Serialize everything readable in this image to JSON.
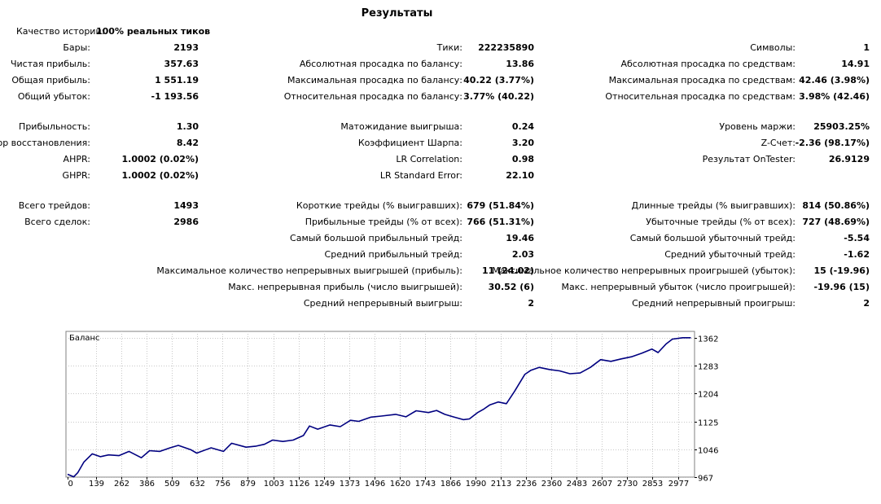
{
  "report": {
    "title": "Результаты",
    "quality": {
      "label": "Качество истории:",
      "value": "100% реальных тиков"
    },
    "col1": [
      {
        "label": "Бары:",
        "value": "2193"
      },
      {
        "label": "Чистая прибыль:",
        "value": "357.63"
      },
      {
        "label": "Общая прибыль:",
        "value": "1 551.19"
      },
      {
        "label": "Общий убыток:",
        "value": "-1 193.56"
      },
      {
        "label": "Прибыльность:",
        "value": "1.30"
      },
      {
        "label": "Фактор восстановления:",
        "value": "8.42"
      },
      {
        "label": "AHPR:",
        "value": "1.0002 (0.02%)"
      },
      {
        "label": "GHPR:",
        "value": "1.0002 (0.02%)"
      },
      {
        "label": "Всего трейдов:",
        "value": "1493"
      },
      {
        "label": "Всего сделок:",
        "value": "2986"
      }
    ],
    "col2": [
      {
        "label": "Тики:",
        "value": "222235890"
      },
      {
        "label": "Абсолютная просадка по балансу:",
        "value": "13.86"
      },
      {
        "label": "Максимальная просадка по балансу:",
        "value": "40.22 (3.77%)"
      },
      {
        "label": "Относительная просадка по балансу:",
        "value": "3.77% (40.22)"
      },
      {
        "label": "Матожидание выигрыша:",
        "value": "0.24"
      },
      {
        "label": "Коэффициент Шарпа:",
        "value": "3.20"
      },
      {
        "label": "LR Correlation:",
        "value": "0.98"
      },
      {
        "label": "LR Standard Error:",
        "value": "22.10"
      },
      {
        "label": "Короткие трейды (% выигравших):",
        "value": "679 (51.84%)"
      },
      {
        "label": "Прибыльные трейды (% от всех):",
        "value": "766 (51.31%)"
      },
      {
        "label": "Самый большой прибыльный трейд:",
        "value": "19.46"
      },
      {
        "label": "Средний прибыльный трейд:",
        "value": "2.03"
      },
      {
        "label": "Максимальное количество непрерывных выигрышей (прибыль):",
        "value": "11 (24.02)"
      },
      {
        "label": "Макс. непрерывная прибыль (число выигрышей):",
        "value": "30.52 (6)"
      },
      {
        "label": "Средний непрерывный выигрыш:",
        "value": "2"
      }
    ],
    "col3": [
      {
        "label": "Символы:",
        "value": "1"
      },
      {
        "label": "Абсолютная просадка по средствам:",
        "value": "14.91"
      },
      {
        "label": "Максимальная просадка по средствам:",
        "value": "42.46 (3.98%)"
      },
      {
        "label": "Относительная просадка по средствам:",
        "value": "3.98% (42.46)"
      },
      {
        "label": "Уровень маржи:",
        "value": "25903.25%"
      },
      {
        "label": "Z-Счет:",
        "value": "-2.36 (98.17%)"
      },
      {
        "label": "Результат OnTester:",
        "value": "26.9129"
      },
      {
        "label": "Длинные трейды (% выигравших):",
        "value": "814 (50.86%)"
      },
      {
        "label": "Убыточные трейды (% от всех):",
        "value": "727 (48.69%)"
      },
      {
        "label": "Самый большой убыточный трейд:",
        "value": "-5.54"
      },
      {
        "label": "Средний убыточный трейд:",
        "value": "-1.62"
      },
      {
        "label": "Максимальное количество непрерывных проигрышей (убыток):",
        "value": "15 (-19.96)"
      },
      {
        "label": "Макс. непрерывный убыток (число проигрышей):",
        "value": "-19.96 (15)"
      },
      {
        "label": "Средний непрерывный проигрыш:",
        "value": "2"
      }
    ]
  },
  "chart_data": {
    "type": "line",
    "title": "Баланс",
    "line_color": "#000080",
    "grid": true,
    "xlim": [
      0,
      3050
    ],
    "ylim": [
      967,
      1380
    ],
    "x_ticks": [
      0,
      139,
      262,
      386,
      509,
      632,
      756,
      879,
      1003,
      1126,
      1249,
      1373,
      1496,
      1620,
      1743,
      1866,
      1990,
      2113,
      2236,
      2360,
      2483,
      2607,
      2730,
      2853,
      2977
    ],
    "y_ticks": [
      967,
      1046,
      1125,
      1204,
      1283,
      1362
    ],
    "series": [
      {
        "x": [
          0,
          30,
          50,
          80,
          120,
          160,
          200,
          250,
          300,
          360,
          400,
          450,
          500,
          540,
          600,
          630,
          700,
          760,
          800,
          870,
          920,
          960,
          1000,
          1050,
          1100,
          1150,
          1180,
          1220,
          1280,
          1330,
          1380,
          1420,
          1480,
          1530,
          1600,
          1650,
          1700,
          1760,
          1800,
          1840,
          1880,
          1930,
          1960,
          2000,
          2030,
          2060,
          2100,
          2140,
          2180,
          2230,
          2260,
          2300,
          2350,
          2400,
          2450,
          2500,
          2550,
          2600,
          2650,
          2700,
          2750,
          2800,
          2850,
          2880,
          2920,
          2950,
          3000,
          3040
        ],
        "y": [
          975,
          968,
          980,
          1010,
          1033,
          1025,
          1030,
          1028,
          1040,
          1022,
          1042,
          1040,
          1050,
          1057,
          1045,
          1035,
          1050,
          1040,
          1063,
          1052,
          1055,
          1060,
          1072,
          1068,
          1072,
          1085,
          1112,
          1103,
          1115,
          1110,
          1128,
          1125,
          1137,
          1140,
          1145,
          1138,
          1155,
          1150,
          1156,
          1145,
          1138,
          1130,
          1132,
          1150,
          1160,
          1172,
          1180,
          1175,
          1210,
          1258,
          1270,
          1278,
          1272,
          1268,
          1260,
          1262,
          1278,
          1300,
          1295,
          1302,
          1308,
          1318,
          1330,
          1320,
          1345,
          1358,
          1362,
          1362
        ]
      }
    ]
  }
}
